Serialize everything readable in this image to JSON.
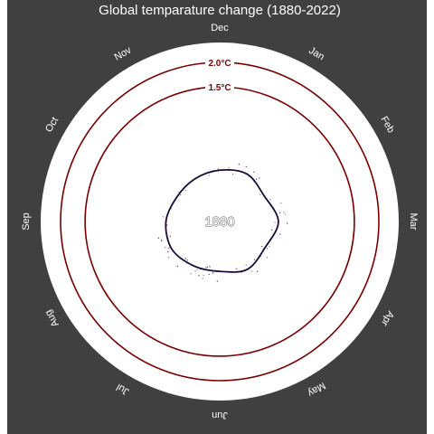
{
  "chart_data": {
    "type": "line",
    "polar": true,
    "title": "Global temparature change (1880-2022)",
    "year_label": "1880",
    "months": [
      "Jan",
      "Feb",
      "Mar",
      "Apr",
      "May",
      "Jun",
      "Jul",
      "Aug",
      "Sep",
      "Oct",
      "Nov",
      "Dec"
    ],
    "series": [
      {
        "values": [
          -0.13,
          -0.2,
          -0.05,
          -0.18,
          -0.12,
          -0.23,
          -0.2,
          -0.12,
          -0.15,
          -0.24,
          -0.24,
          -0.2
        ],
        "color": "#1a0a3a"
      }
    ],
    "reference_rings": [
      {
        "label": "2.0°C",
        "value": 2.0,
        "color": "#7a0000"
      },
      {
        "label": "1.5°C",
        "value": 1.5,
        "color": "#7a0000"
      }
    ],
    "colors": {
      "background": "#404040",
      "plot": "#ffffff"
    }
  }
}
